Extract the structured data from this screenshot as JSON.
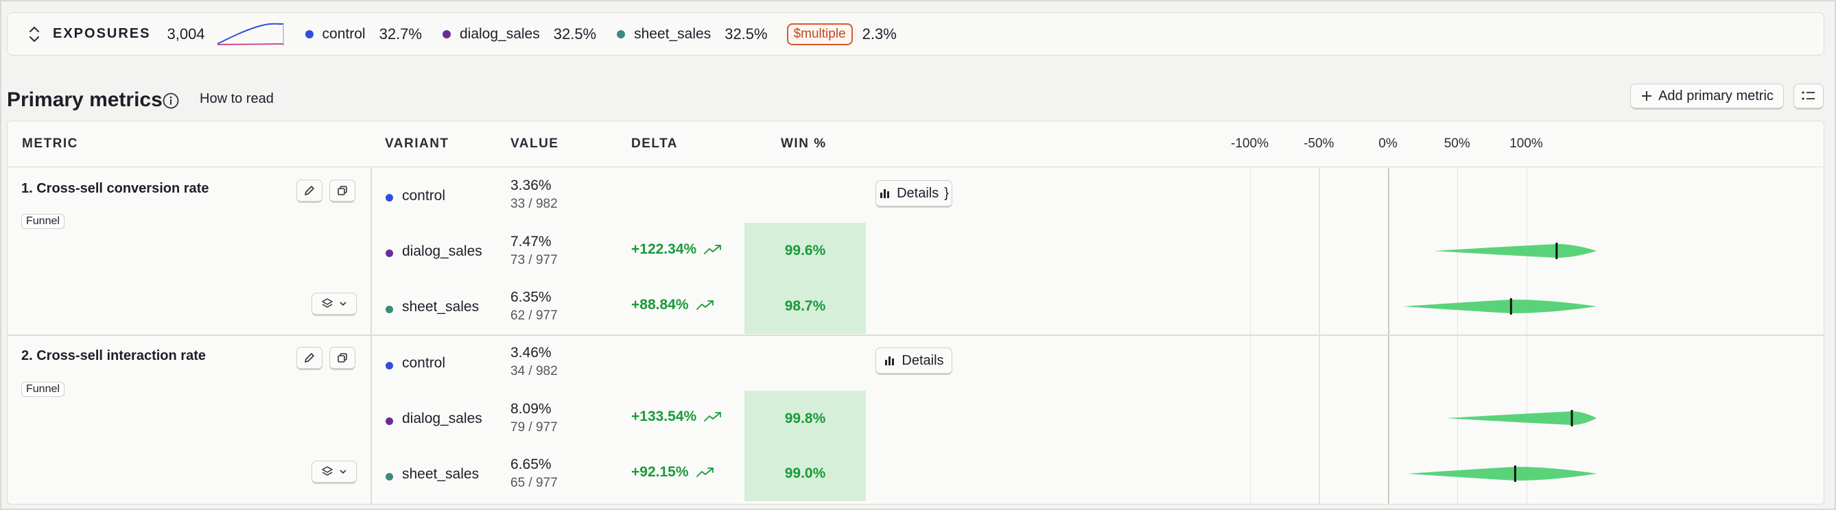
{
  "exposures": {
    "label": "EXPOSURES",
    "count": "3,004",
    "variants": [
      {
        "name": "control",
        "pct": "32.7%",
        "color": "#2f4fd8"
      },
      {
        "name": "dialog_sales",
        "pct": "32.5%",
        "color": "#6b2a9a"
      },
      {
        "name": "sheet_sales",
        "pct": "32.5%",
        "color": "#3e8a7c"
      }
    ],
    "multiple_label": "$multiple",
    "multiple_pct": "2.3%"
  },
  "primary": {
    "title": "Primary metrics",
    "how_to_read": "How to read",
    "add_label": "Add primary metric"
  },
  "table": {
    "headers": {
      "metric": "METRIC",
      "variant": "VARIANT",
      "value": "VALUE",
      "delta": "DELTA",
      "win": "WIN %"
    },
    "axis_ticks": [
      {
        "value": -100,
        "label": "-100%"
      },
      {
        "value": -50,
        "label": "-50%"
      },
      {
        "value": 0,
        "label": "0%"
      },
      {
        "value": 50,
        "label": "50%"
      },
      {
        "value": 100,
        "label": "100%"
      }
    ],
    "details_label": "Details",
    "metrics": [
      {
        "name": "1. Cross-sell conversion rate",
        "tag": "Funnel",
        "rows": [
          {
            "variant": "control",
            "color": "#2f4fd8",
            "value": "3.36%",
            "sub": "33 / 982",
            "delta": "",
            "win": ""
          },
          {
            "variant": "dialog_sales",
            "color": "#6b2a9a",
            "value": "7.47%",
            "sub": "73 / 977",
            "delta": "+122.34%",
            "win": "99.6%",
            "ci_low": 33,
            "ci_high": 151,
            "ci_mid": 122
          },
          {
            "variant": "sheet_sales",
            "color": "#3e8a7c",
            "value": "6.35%",
            "sub": "62 / 977",
            "delta": "+88.84%",
            "win": "98.7%",
            "ci_low": 11,
            "ci_high": 151,
            "ci_mid": 89
          }
        ]
      },
      {
        "name": "2. Cross-sell interaction rate",
        "tag": "Funnel",
        "rows": [
          {
            "variant": "control",
            "color": "#2f4fd8",
            "value": "3.46%",
            "sub": "34 / 982",
            "delta": "",
            "win": ""
          },
          {
            "variant": "dialog_sales",
            "color": "#6b2a9a",
            "value": "8.09%",
            "sub": "79 / 977",
            "delta": "+133.54%",
            "win": "99.8%",
            "ci_low": 42,
            "ci_high": 151,
            "ci_mid": 133
          },
          {
            "variant": "sheet_sales",
            "color": "#3e8a7c",
            "value": "6.65%",
            "sub": "65 / 977",
            "delta": "+92.15%",
            "win": "99.0%",
            "ci_low": 14,
            "ci_high": 151,
            "ci_mid": 92
          }
        ]
      }
    ]
  },
  "colors": {
    "win_bg": "#d6efd8",
    "positive": "#1a9a3a",
    "violin": "#5ad27a",
    "multiple": "#d35a2b"
  }
}
